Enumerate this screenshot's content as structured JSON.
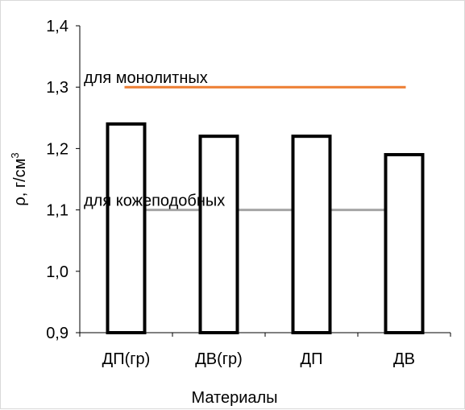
{
  "chart_data": {
    "type": "bar",
    "categories": [
      "ДП(гр)",
      "ДВ(гр)",
      "ДП",
      "ДВ"
    ],
    "values": [
      1.24,
      1.22,
      1.22,
      1.19
    ],
    "xlabel": "Материалы",
    "ylabel": "ρ, г/см",
    "ylabel_sup": "3",
    "ylim": [
      0.9,
      1.4
    ],
    "yticks": [
      "0,9",
      "1,0",
      "1,1",
      "1,2",
      "1,3",
      "1,4"
    ],
    "ytick_values": [
      0.9,
      1.0,
      1.1,
      1.2,
      1.3,
      1.4
    ],
    "grid": false,
    "bar_fill": "#ffffff",
    "bar_stroke": "#000000",
    "reference_lines": [
      {
        "label": "для монолитных",
        "value": 1.3,
        "color": "#ed7d31"
      },
      {
        "label": "для кожеподобных",
        "value": 1.1,
        "color": "#a5a5a5"
      }
    ]
  }
}
